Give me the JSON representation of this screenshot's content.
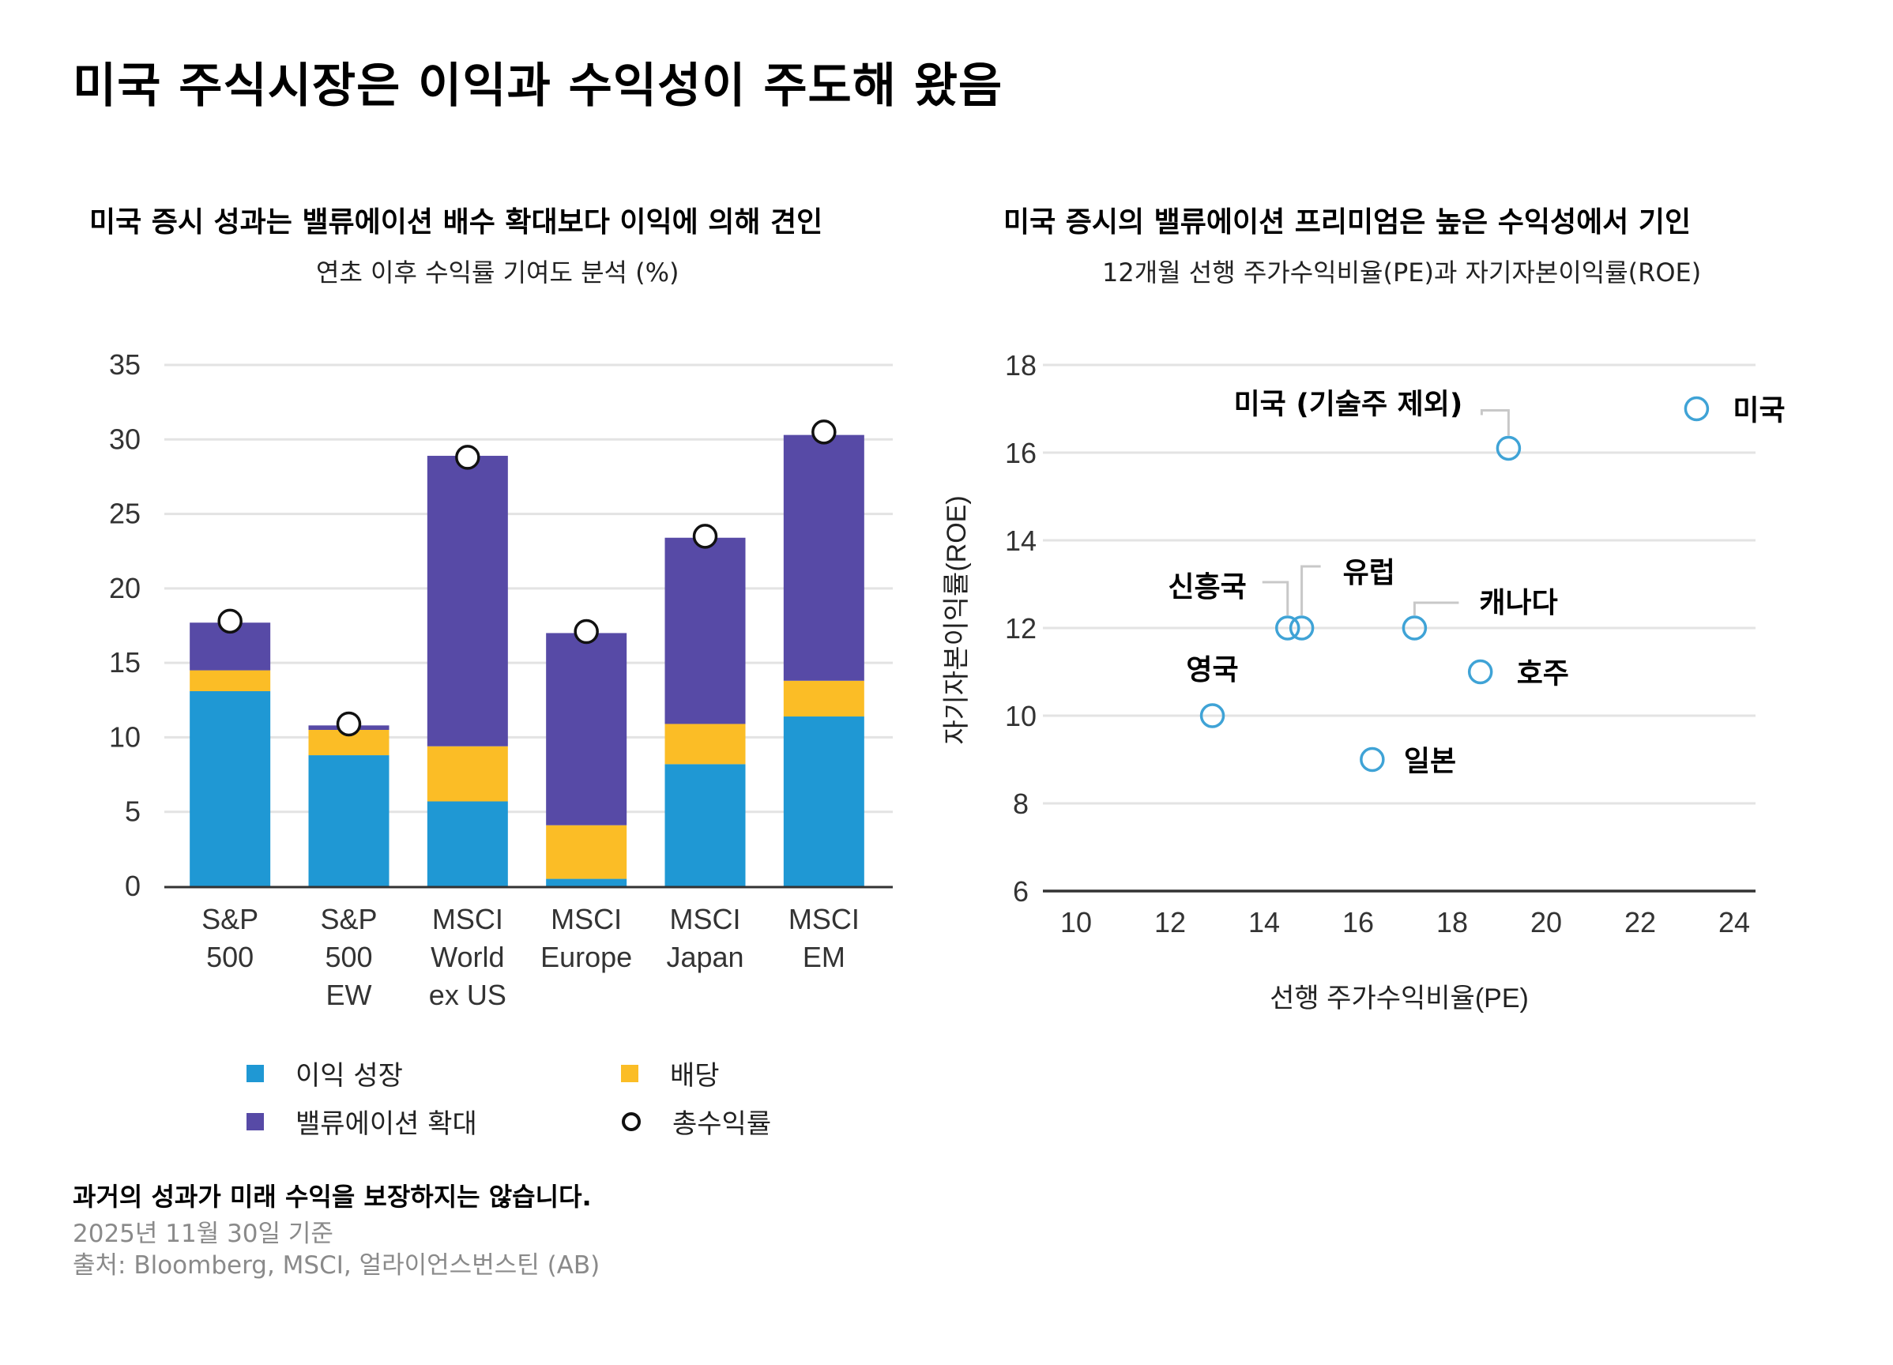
{
  "title": "미국 주식시장은 이익과 수익성이 주도해 왔음",
  "left_chart": {
    "title": "미국 증시 성과는 밸류에이션 배수 확대보다 이익에 의해 견인",
    "subtitle": "연초 이후 수익률 기여도 분석 (%)"
  },
  "right_chart": {
    "title": "미국 증시의 밸류에이션 프리미엄은 높은 수익성에서 기인",
    "subtitle": "12개월 선행 주가수익비율(PE)과 자기자본이익률(ROE)"
  },
  "legend": {
    "earnings": "이익 성장",
    "dividend": "배당",
    "valuation": "밸류에이션 확대",
    "total": "총수익률"
  },
  "colors": {
    "earnings": "#1f98d4",
    "dividend": "#fbbd26",
    "valuation": "#574aa6",
    "scatter": "#3fa3d6",
    "grid": "#e3e3e3",
    "axis": "#333333"
  },
  "footer": {
    "disclaimer": "과거의 성과가 미래 수익을 보장하지는 않습니다.",
    "date": "2025년 11월 30일 기준",
    "source": "출처: Bloomberg, MSCI, 얼라이언스번스틴 (AB)"
  },
  "chart_data": [
    {
      "type": "bar",
      "stacked": true,
      "title": "미국 증시 성과는 밸류에이션 배수 확대보다 이익에 의해 견인",
      "subtitle": "연초 이후 수익률 기여도 분석 (%)",
      "categories": [
        [
          "S&P",
          "500"
        ],
        [
          "S&P",
          "500",
          "EW"
        ],
        [
          "MSCI",
          "World",
          "ex US"
        ],
        [
          "MSCI",
          "Europe"
        ],
        [
          "MSCI",
          "Japan"
        ],
        [
          "MSCI",
          "EM"
        ]
      ],
      "series": [
        {
          "name": "이익 성장",
          "key": "earnings",
          "values": [
            13.1,
            8.8,
            5.7,
            0.5,
            8.2,
            11.4
          ]
        },
        {
          "name": "배당",
          "key": "dividend",
          "values": [
            1.4,
            1.7,
            3.7,
            3.6,
            2.7,
            2.4
          ]
        },
        {
          "name": "밸류에이션 확대",
          "key": "valuation",
          "values": [
            3.2,
            0.3,
            19.5,
            12.9,
            12.5,
            16.5
          ]
        }
      ],
      "markers": {
        "name": "총수익률",
        "values": [
          17.8,
          10.9,
          28.8,
          17.1,
          23.5,
          30.5
        ]
      },
      "xlabel": "",
      "ylabel": "",
      "ylim": [
        0,
        35
      ],
      "yticks": [
        0,
        5,
        10,
        15,
        20,
        25,
        30,
        35
      ],
      "grid": true,
      "legend_position": "bottom"
    },
    {
      "type": "scatter",
      "title": "미국 증시의 밸류에이션 프리미엄은 높은 수익성에서 기인",
      "subtitle": "12개월 선행 주가수익비율(PE)과 자기자본이익률(ROE)",
      "xlabel": "선행 주가수익비율(PE)",
      "ylabel": "자기자본이익률(ROE)",
      "xlim": [
        10,
        24
      ],
      "ylim": [
        6,
        18
      ],
      "xticks": [
        10,
        12,
        14,
        16,
        18,
        20,
        22,
        24
      ],
      "yticks": [
        6,
        8,
        10,
        12,
        14,
        16,
        18
      ],
      "grid": true,
      "points": [
        {
          "label": "미국",
          "x": 23.2,
          "y": 17.0
        },
        {
          "label": "미국 (기술주 제외)",
          "x": 19.2,
          "y": 16.1
        },
        {
          "label": "신흥국",
          "x": 14.5,
          "y": 12.0
        },
        {
          "label": "유럽",
          "x": 14.8,
          "y": 12.0
        },
        {
          "label": "캐나다",
          "x": 17.2,
          "y": 12.0
        },
        {
          "label": "호주",
          "x": 18.6,
          "y": 11.0
        },
        {
          "label": "영국",
          "x": 12.9,
          "y": 10.0
        },
        {
          "label": "일본",
          "x": 16.3,
          "y": 9.0
        }
      ]
    }
  ]
}
